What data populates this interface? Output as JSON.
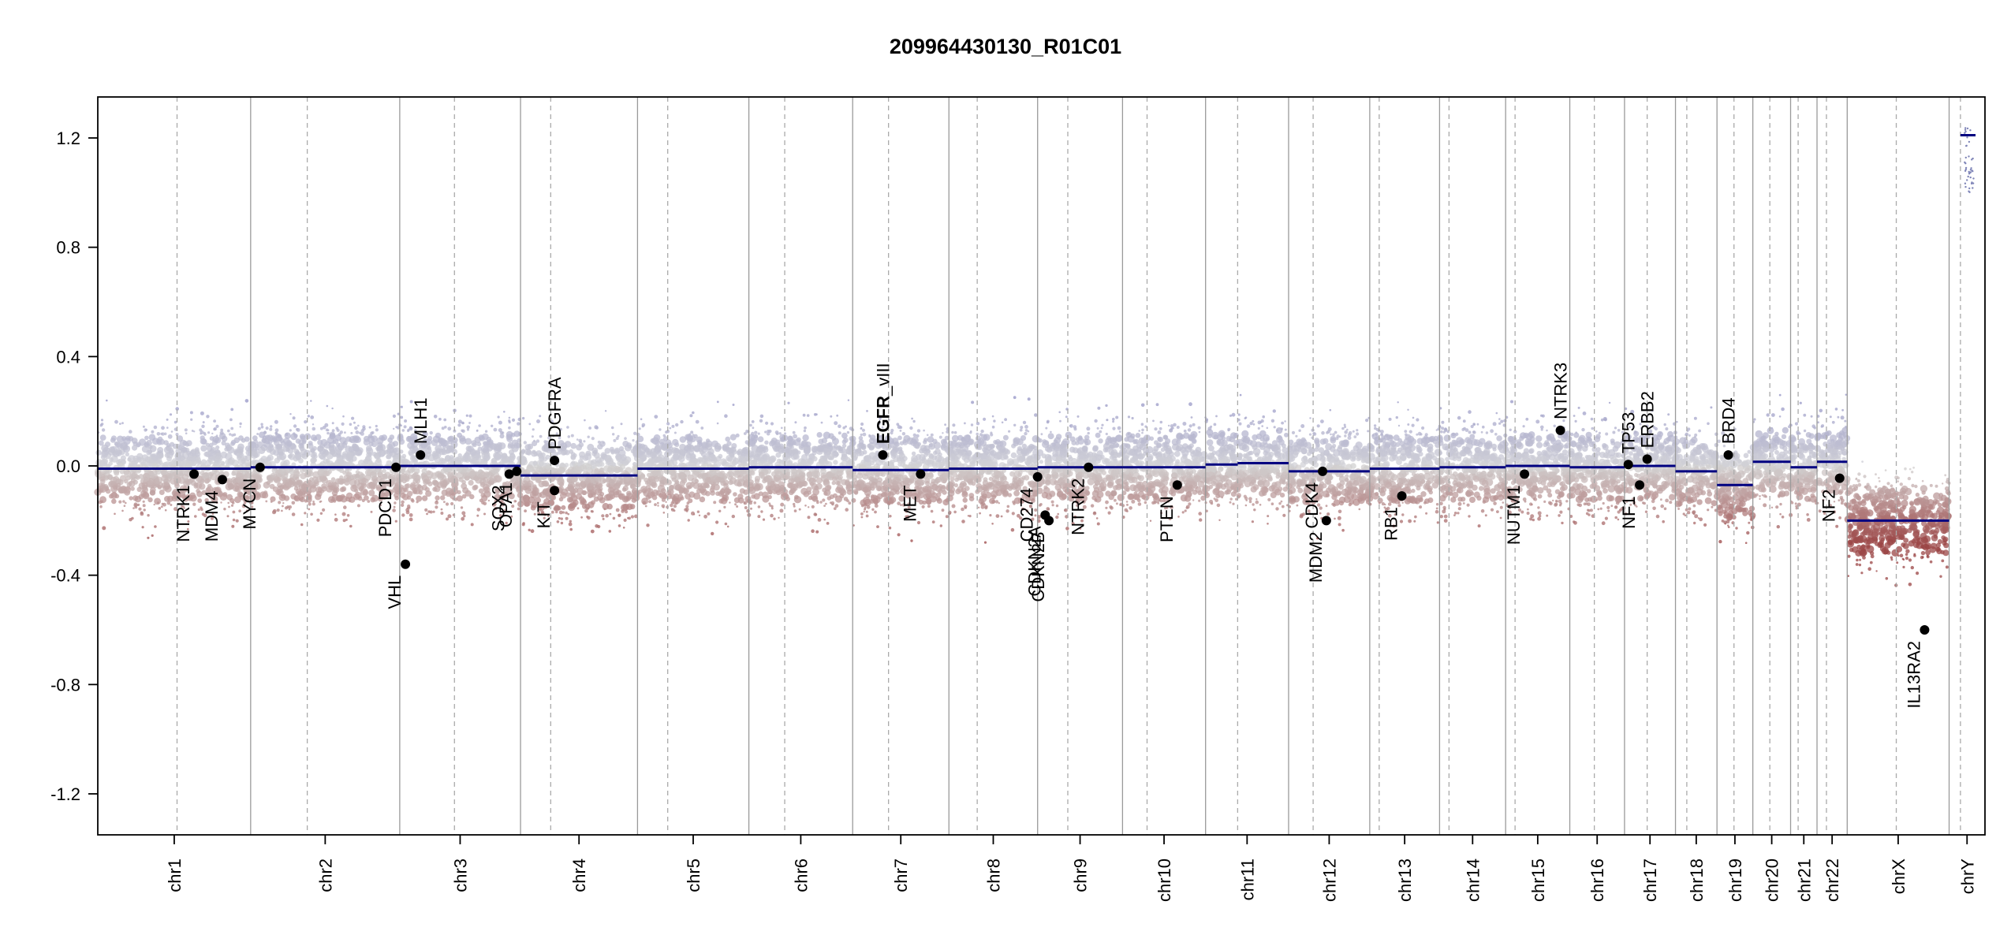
{
  "chart_data": {
    "type": "scatter",
    "title": "209964430130_R01C01",
    "xlabel": "",
    "ylabel": "",
    "ylim": [
      -1.35,
      1.35
    ],
    "yticks": [
      -1.2,
      -0.8,
      -0.4,
      0.0,
      0.4,
      0.8,
      1.2
    ],
    "ytick_labels": [
      "-1.2",
      "-0.8",
      "-0.4",
      "0.0",
      "0.4",
      "0.8",
      "1.2"
    ],
    "xlim": [
      0,
      100
    ],
    "chromosomes": [
      {
        "name": "chr1",
        "start": 0.0,
        "end": 8.1,
        "centromere": 4.2
      },
      {
        "name": "chr2",
        "start": 8.1,
        "end": 16.0,
        "centromere": 11.1
      },
      {
        "name": "chr3",
        "start": 16.0,
        "end": 22.4,
        "centromere": 18.9
      },
      {
        "name": "chr4",
        "start": 22.4,
        "end": 28.6,
        "centromere": 24.0
      },
      {
        "name": "chr5",
        "start": 28.6,
        "end": 34.5,
        "centromere": 30.2
      },
      {
        "name": "chr6",
        "start": 34.5,
        "end": 40.0,
        "centromere": 36.4
      },
      {
        "name": "chr7",
        "start": 40.0,
        "end": 45.1,
        "centromere": 41.9
      },
      {
        "name": "chr8",
        "start": 45.1,
        "end": 49.8,
        "centromere": 46.6
      },
      {
        "name": "chr9",
        "start": 49.8,
        "end": 54.3,
        "centromere": 51.4
      },
      {
        "name": "chr10",
        "start": 54.3,
        "end": 58.7,
        "centromere": 55.6
      },
      {
        "name": "chr11",
        "start": 58.7,
        "end": 63.1,
        "centromere": 60.4
      },
      {
        "name": "chr12",
        "start": 63.1,
        "end": 67.4,
        "centromere": 64.4
      },
      {
        "name": "chr13",
        "start": 67.4,
        "end": 71.1,
        "centromere": 67.9
      },
      {
        "name": "chr14",
        "start": 71.1,
        "end": 74.6,
        "centromere": 71.6
      },
      {
        "name": "chr15",
        "start": 74.6,
        "end": 78.0,
        "centromere": 75.1
      },
      {
        "name": "chr16",
        "start": 78.0,
        "end": 80.9,
        "centromere": 79.3
      },
      {
        "name": "chr17",
        "start": 80.9,
        "end": 83.6,
        "centromere": 82.1
      },
      {
        "name": "chr18",
        "start": 83.6,
        "end": 85.8,
        "centromere": 84.2
      },
      {
        "name": "chr19",
        "start": 85.8,
        "end": 87.7,
        "centromere": 86.7
      },
      {
        "name": "chr20",
        "start": 87.7,
        "end": 89.7,
        "centromere": 88.6
      },
      {
        "name": "chr21",
        "start": 89.7,
        "end": 91.1,
        "centromere": 90.1
      },
      {
        "name": "chr22",
        "start": 91.1,
        "end": 92.7,
        "centromere": 91.6
      },
      {
        "name": "chrX",
        "start": 92.7,
        "end": 98.1,
        "centromere": 95.3
      },
      {
        "name": "chrY",
        "start": 98.1,
        "end": 100.0,
        "centromere": 98.7
      }
    ],
    "segments": [
      {
        "start": 0.0,
        "end": 8.1,
        "value": -0.01
      },
      {
        "start": 8.1,
        "end": 16.0,
        "value": -0.005
      },
      {
        "start": 16.0,
        "end": 22.4,
        "value": 0.0
      },
      {
        "start": 22.4,
        "end": 28.6,
        "value": -0.035
      },
      {
        "start": 28.6,
        "end": 34.5,
        "value": -0.01
      },
      {
        "start": 34.5,
        "end": 40.0,
        "value": -0.005
      },
      {
        "start": 40.0,
        "end": 45.1,
        "value": -0.015
      },
      {
        "start": 45.1,
        "end": 49.8,
        "value": -0.01
      },
      {
        "start": 49.8,
        "end": 54.3,
        "value": -0.005
      },
      {
        "start": 54.3,
        "end": 58.7,
        "value": -0.005
      },
      {
        "start": 58.7,
        "end": 60.4,
        "value": 0.005
      },
      {
        "start": 60.4,
        "end": 63.1,
        "value": 0.01
      },
      {
        "start": 63.1,
        "end": 67.4,
        "value": -0.02
      },
      {
        "start": 67.4,
        "end": 71.1,
        "value": -0.01
      },
      {
        "start": 71.1,
        "end": 74.6,
        "value": -0.005
      },
      {
        "start": 74.6,
        "end": 78.0,
        "value": 0.0
      },
      {
        "start": 78.0,
        "end": 80.9,
        "value": -0.005
      },
      {
        "start": 80.9,
        "end": 83.6,
        "value": 0.0
      },
      {
        "start": 83.6,
        "end": 85.8,
        "value": -0.02
      },
      {
        "start": 85.8,
        "end": 87.7,
        "value": -0.07
      },
      {
        "start": 87.7,
        "end": 89.7,
        "value": 0.015
      },
      {
        "start": 89.7,
        "end": 91.1,
        "value": -0.005
      },
      {
        "start": 91.1,
        "end": 92.7,
        "value": 0.015
      },
      {
        "start": 92.7,
        "end": 98.1,
        "value": -0.2
      },
      {
        "start": 98.7,
        "end": 99.5,
        "value": 1.21
      }
    ],
    "genes": [
      {
        "name": "NTRK1",
        "x": 5.1,
        "y": -0.03,
        "label_side": "below"
      },
      {
        "name": "MDM4",
        "x": 6.6,
        "y": -0.05,
        "label_side": "below"
      },
      {
        "name": "MYCN",
        "x": 8.6,
        "y": -0.005,
        "label_side": "below"
      },
      {
        "name": "PDCD1",
        "x": 15.8,
        "y": -0.005,
        "label_side": "below"
      },
      {
        "name": "VHL",
        "x": 16.3,
        "y": -0.36,
        "label_side": "below"
      },
      {
        "name": "MLH1",
        "x": 17.1,
        "y": 0.04,
        "label_side": "above"
      },
      {
        "name": "SOX2",
        "x": 21.8,
        "y": -0.03,
        "label_side": "below"
      },
      {
        "name": "OPA1",
        "x": 22.2,
        "y": -0.02,
        "label_side": "below"
      },
      {
        "name": "PDGFRA",
        "x": 24.2,
        "y": 0.02,
        "label_side": "above"
      },
      {
        "name": "KIT",
        "x": 24.2,
        "y": -0.09,
        "label_side": "below"
      },
      {
        "name": "EGFR",
        "x": 41.6,
        "y": 0.04,
        "label_side": "above",
        "bold": true,
        "suffix": "_vIII"
      },
      {
        "name": "MET",
        "x": 43.6,
        "y": -0.03,
        "label_side": "below"
      },
      {
        "name": "CD274",
        "x": 49.8,
        "y": -0.04,
        "label_side": "below"
      },
      {
        "name": "CDKN2A",
        "x": 50.2,
        "y": -0.18,
        "label_side": "below"
      },
      {
        "name": "CDKN2B",
        "x": 50.4,
        "y": -0.2,
        "label_side": "below"
      },
      {
        "name": "NTRK2",
        "x": 52.5,
        "y": -0.005,
        "label_side": "below"
      },
      {
        "name": "PTEN",
        "x": 57.2,
        "y": -0.07,
        "label_side": "below"
      },
      {
        "name": "MDM2",
        "x": 65.1,
        "y": -0.2,
        "label_side": "below"
      },
      {
        "name": "CDK4",
        "x": 64.9,
        "y": -0.02,
        "label_side": "below"
      },
      {
        "name": "RB1",
        "x": 69.1,
        "y": -0.11,
        "label_side": "below"
      },
      {
        "name": "NUTM1",
        "x": 75.6,
        "y": -0.03,
        "label_side": "below"
      },
      {
        "name": "NTRK3",
        "x": 77.5,
        "y": 0.13,
        "label_side": "above"
      },
      {
        "name": "TP53",
        "x": 81.1,
        "y": 0.005,
        "label_side": "above"
      },
      {
        "name": "ERBB2",
        "x": 82.1,
        "y": 0.025,
        "label_side": "above"
      },
      {
        "name": "NF1",
        "x": 81.7,
        "y": -0.07,
        "label_side": "below"
      },
      {
        "name": "BRD4",
        "x": 86.4,
        "y": 0.04,
        "label_side": "above"
      },
      {
        "name": "NF2",
        "x": 92.3,
        "y": -0.045,
        "label_side": "below"
      },
      {
        "name": "IL13RA2",
        "x": 96.8,
        "y": -0.6,
        "label_side": "below"
      }
    ]
  }
}
